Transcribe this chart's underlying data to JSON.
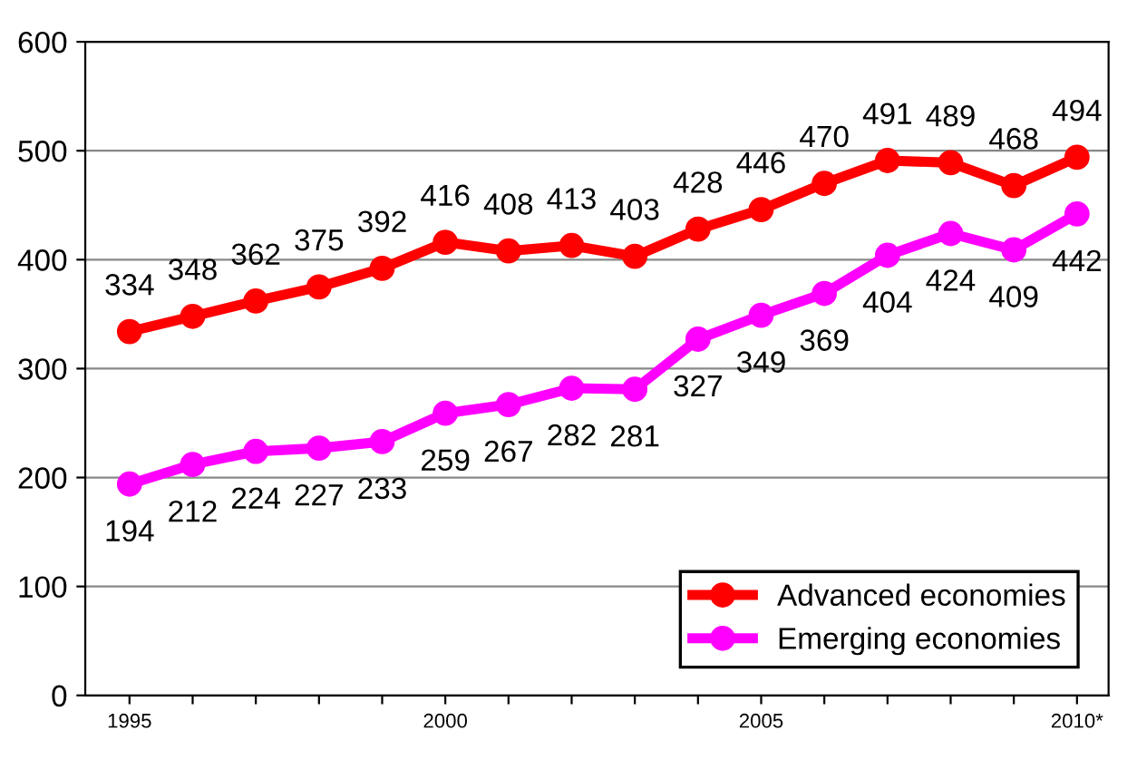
{
  "chart_data": {
    "type": "line",
    "categories": [
      "1995",
      null,
      null,
      null,
      null,
      "2000",
      null,
      null,
      null,
      null,
      "2005",
      null,
      null,
      null,
      null,
      "2010*"
    ],
    "series": [
      {
        "name": "Advanced economies",
        "color": "#ff0000",
        "values": [
          334,
          348,
          362,
          375,
          392,
          416,
          408,
          413,
          403,
          428,
          446,
          470,
          491,
          489,
          468,
          494
        ]
      },
      {
        "name": "Emerging economies",
        "color": "#ff00ff",
        "values": [
          194,
          212,
          224,
          227,
          233,
          259,
          267,
          282,
          281,
          327,
          349,
          369,
          404,
          424,
          409,
          442
        ]
      }
    ],
    "ylim": [
      0,
      600
    ],
    "yticks": [
      0,
      100,
      200,
      300,
      400,
      500,
      600
    ],
    "grid": "y",
    "legend": "bottom right",
    "marker": "circle",
    "line_style": "solid",
    "data_labels": true
  }
}
